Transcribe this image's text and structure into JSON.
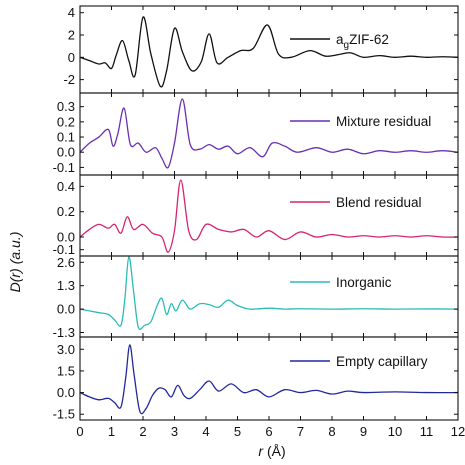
{
  "chart_data": {
    "type": "line",
    "xlabel_symbol": "r",
    "xlabel_unit": "(Å)",
    "ylabel_symbol": "D(r)",
    "ylabel_unit": "(a.u.)",
    "xlim": [
      0,
      12
    ],
    "xticks": [
      "0",
      "1",
      "2",
      "3",
      "4",
      "5",
      "6",
      "7",
      "8",
      "9",
      "10",
      "11",
      "12"
    ],
    "grid": false,
    "legend_placement": "right of each panel",
    "panels": [
      {
        "legend_prefix": "a",
        "legend_subscript": "g",
        "legend_suffix": "ZIF-62",
        "color": "#111111",
        "ylim": [
          -3.2,
          4.6
        ],
        "yticks": [
          "4",
          "2",
          "0",
          "-2"
        ],
        "ytick_values": [
          4,
          2,
          0,
          -2
        ],
        "x": [
          0,
          0.3,
          0.6,
          0.8,
          1.0,
          1.15,
          1.35,
          1.55,
          1.75,
          2.0,
          2.25,
          2.55,
          2.75,
          3.0,
          3.25,
          3.55,
          3.85,
          4.1,
          4.35,
          4.7,
          5.1,
          5.5,
          5.95,
          6.3,
          6.7,
          7.3,
          7.8,
          8.3,
          8.6,
          9.0,
          9.5,
          10.0,
          10.5,
          11.0,
          11.5,
          12.0
        ],
        "y": [
          0,
          -0.3,
          -0.6,
          -0.5,
          -1.0,
          0.2,
          1.5,
          -0.3,
          -1.6,
          3.6,
          0.3,
          -2.6,
          -1.2,
          2.6,
          0.5,
          -1.2,
          -0.4,
          2.1,
          -0.5,
          0.0,
          0.6,
          0.8,
          2.9,
          0.3,
          0.0,
          0.6,
          0.1,
          0.3,
          0.4,
          0.0,
          0.15,
          0.0,
          0.1,
          0.0,
          0.05,
          0.0
        ]
      },
      {
        "legend_label": "Mixture residual",
        "color": "#6a2fb4",
        "ylim": [
          -0.15,
          0.39
        ],
        "yticks": [
          "0.3",
          "0.2",
          "0.1",
          "0.0",
          "-0.1"
        ],
        "ytick_values": [
          0.3,
          0.2,
          0.1,
          0.0,
          -0.1
        ],
        "x": [
          0,
          0.3,
          0.6,
          0.9,
          1.05,
          1.2,
          1.4,
          1.6,
          1.85,
          2.1,
          2.4,
          2.6,
          2.8,
          3.0,
          3.25,
          3.5,
          3.8,
          4.1,
          4.4,
          4.7,
          5.0,
          5.4,
          5.8,
          6.1,
          6.5,
          6.9,
          7.5,
          8.0,
          8.5,
          9.0,
          9.5,
          10.0,
          10.5,
          11.0,
          11.5,
          12.0
        ],
        "y": [
          0.0,
          0.06,
          0.1,
          0.15,
          0.04,
          0.12,
          0.29,
          0.05,
          0.06,
          0.0,
          0.03,
          -0.04,
          -0.1,
          0.06,
          0.35,
          0.05,
          0.02,
          0.05,
          0.02,
          0.04,
          -0.01,
          0.03,
          -0.03,
          0.06,
          0.04,
          0.0,
          0.03,
          0.0,
          0.02,
          -0.01,
          0.01,
          0.0,
          0.01,
          0.0,
          0.01,
          0.0
        ]
      },
      {
        "legend_label": "Blend residual",
        "color": "#d6246e",
        "ylim": [
          -0.15,
          0.49
        ],
        "yticks": [
          "0.4",
          "0.2",
          "0.0",
          "-0.1"
        ],
        "ytick_values": [
          0.4,
          0.2,
          0.0,
          -0.1
        ],
        "x": [
          0,
          0.3,
          0.6,
          0.9,
          1.1,
          1.3,
          1.5,
          1.7,
          2.0,
          2.3,
          2.6,
          2.8,
          3.0,
          3.2,
          3.45,
          3.7,
          4.0,
          4.4,
          4.8,
          5.2,
          5.6,
          6.0,
          6.5,
          7.0,
          7.5,
          8.0,
          8.5,
          9.0,
          9.5,
          10.0,
          10.5,
          11.0,
          11.5,
          12.0
        ],
        "y": [
          0.0,
          0.06,
          0.1,
          0.07,
          0.1,
          0.03,
          0.16,
          0.06,
          0.1,
          0.03,
          0.0,
          -0.12,
          0.05,
          0.45,
          0.05,
          -0.02,
          0.1,
          0.06,
          0.04,
          0.06,
          0.0,
          0.05,
          -0.02,
          0.04,
          0.0,
          0.02,
          0.0,
          0.01,
          0.0,
          0.01,
          0.0,
          0.01,
          0.0,
          0.0
        ]
      },
      {
        "legend_label": "Inorganic",
        "color": "#2bbcb8",
        "ylim": [
          -1.55,
          2.95
        ],
        "yticks": [
          "2.6",
          "1.3",
          "0.0",
          "-1.3"
        ],
        "ytick_values": [
          2.6,
          1.3,
          0.0,
          -1.3
        ],
        "x": [
          0,
          0.3,
          0.6,
          0.9,
          1.1,
          1.3,
          1.42,
          1.55,
          1.7,
          1.85,
          2.05,
          2.25,
          2.45,
          2.6,
          2.75,
          2.9,
          3.05,
          3.25,
          3.5,
          3.8,
          4.1,
          4.4,
          4.7,
          5.0,
          5.4,
          6.0,
          6.5,
          7.0,
          8.0,
          9.0,
          10.0,
          11.0,
          12.0
        ],
        "y": [
          0.0,
          -0.1,
          -0.2,
          -0.3,
          -0.6,
          -0.9,
          0.5,
          2.9,
          1.0,
          -1.0,
          -0.9,
          -0.7,
          0.2,
          0.6,
          -0.3,
          0.3,
          -0.1,
          0.5,
          0.0,
          0.3,
          0.25,
          0.1,
          0.5,
          0.2,
          0.0,
          0.05,
          0.0,
          0.02,
          0.0,
          0.02,
          0.0,
          0.01,
          0.0
        ]
      },
      {
        "legend_label": "Empty capillary",
        "color": "#1f2a9a",
        "ylim": [
          -1.9,
          3.85
        ],
        "yticks": [
          "3.0",
          "1.5",
          "0.0",
          "-1.5"
        ],
        "ytick_values": [
          3.0,
          1.5,
          0.0,
          -1.5
        ],
        "x": [
          0,
          0.3,
          0.6,
          0.9,
          1.1,
          1.3,
          1.45,
          1.58,
          1.72,
          1.9,
          2.1,
          2.3,
          2.5,
          2.7,
          2.9,
          3.1,
          3.3,
          3.5,
          3.8,
          4.1,
          4.4,
          4.8,
          5.2,
          5.6,
          6.0,
          6.5,
          7.0,
          7.5,
          8.0,
          8.5,
          9.0,
          10.0,
          11.0,
          12.0
        ],
        "y": [
          0.0,
          -0.3,
          -0.5,
          -0.4,
          -0.7,
          -1.0,
          1.0,
          3.3,
          1.2,
          -1.3,
          -1.1,
          -0.2,
          0.3,
          0.2,
          -0.3,
          0.5,
          -0.2,
          -0.4,
          0.2,
          0.8,
          0.1,
          0.6,
          0.0,
          0.2,
          -0.3,
          0.2,
          0.0,
          0.15,
          -0.1,
          0.1,
          0.0,
          0.05,
          0.0,
          0.0
        ]
      }
    ]
  }
}
